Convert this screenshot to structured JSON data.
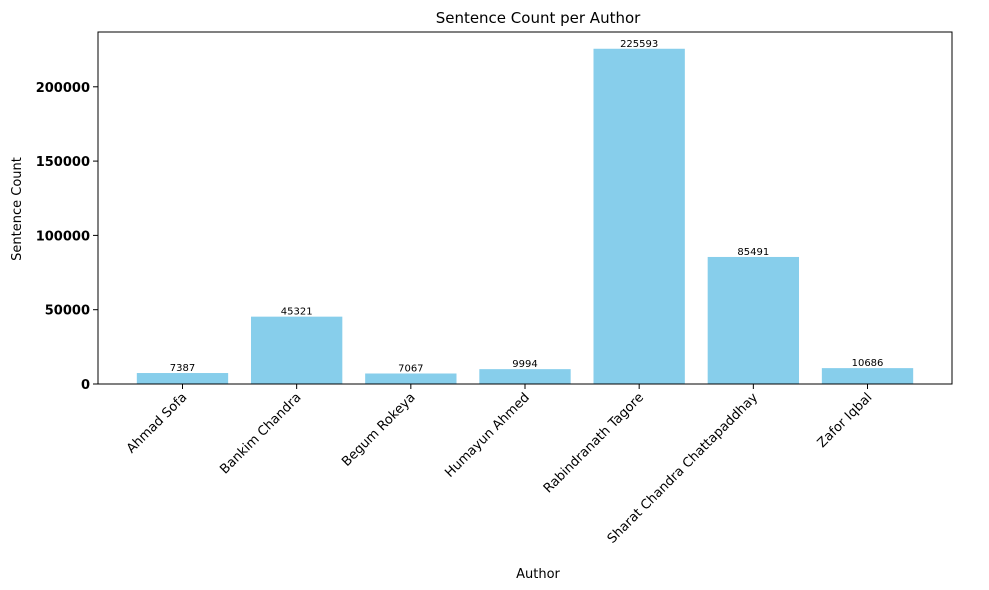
{
  "chart_data": {
    "type": "bar",
    "title": "Sentence Count per Author",
    "xlabel": "Author",
    "ylabel": "Sentence Count",
    "categories": [
      "Ahmad Sofa",
      "Bankim Chandra",
      "Begum Rokeya",
      "Humayun Ahmed",
      "Rabindranath Tagore",
      "Sharat Chandra Chattapaddhay",
      "Zafor Iqbal"
    ],
    "values": [
      7387,
      45321,
      7067,
      9994,
      225593,
      85491,
      10686
    ],
    "data_labels": [
      "7387",
      "45321",
      "7067",
      "9994",
      "225593",
      "85491",
      "10686"
    ],
    "yticks": [
      0,
      50000,
      100000,
      150000,
      200000
    ],
    "ytick_labels": [
      "0",
      "50000",
      "100000",
      "150000",
      "200000"
    ],
    "ylim": [
      0,
      236873
    ],
    "bar_color": "#87CEEB",
    "grid": false,
    "xtick_rotation_deg": 45
  }
}
